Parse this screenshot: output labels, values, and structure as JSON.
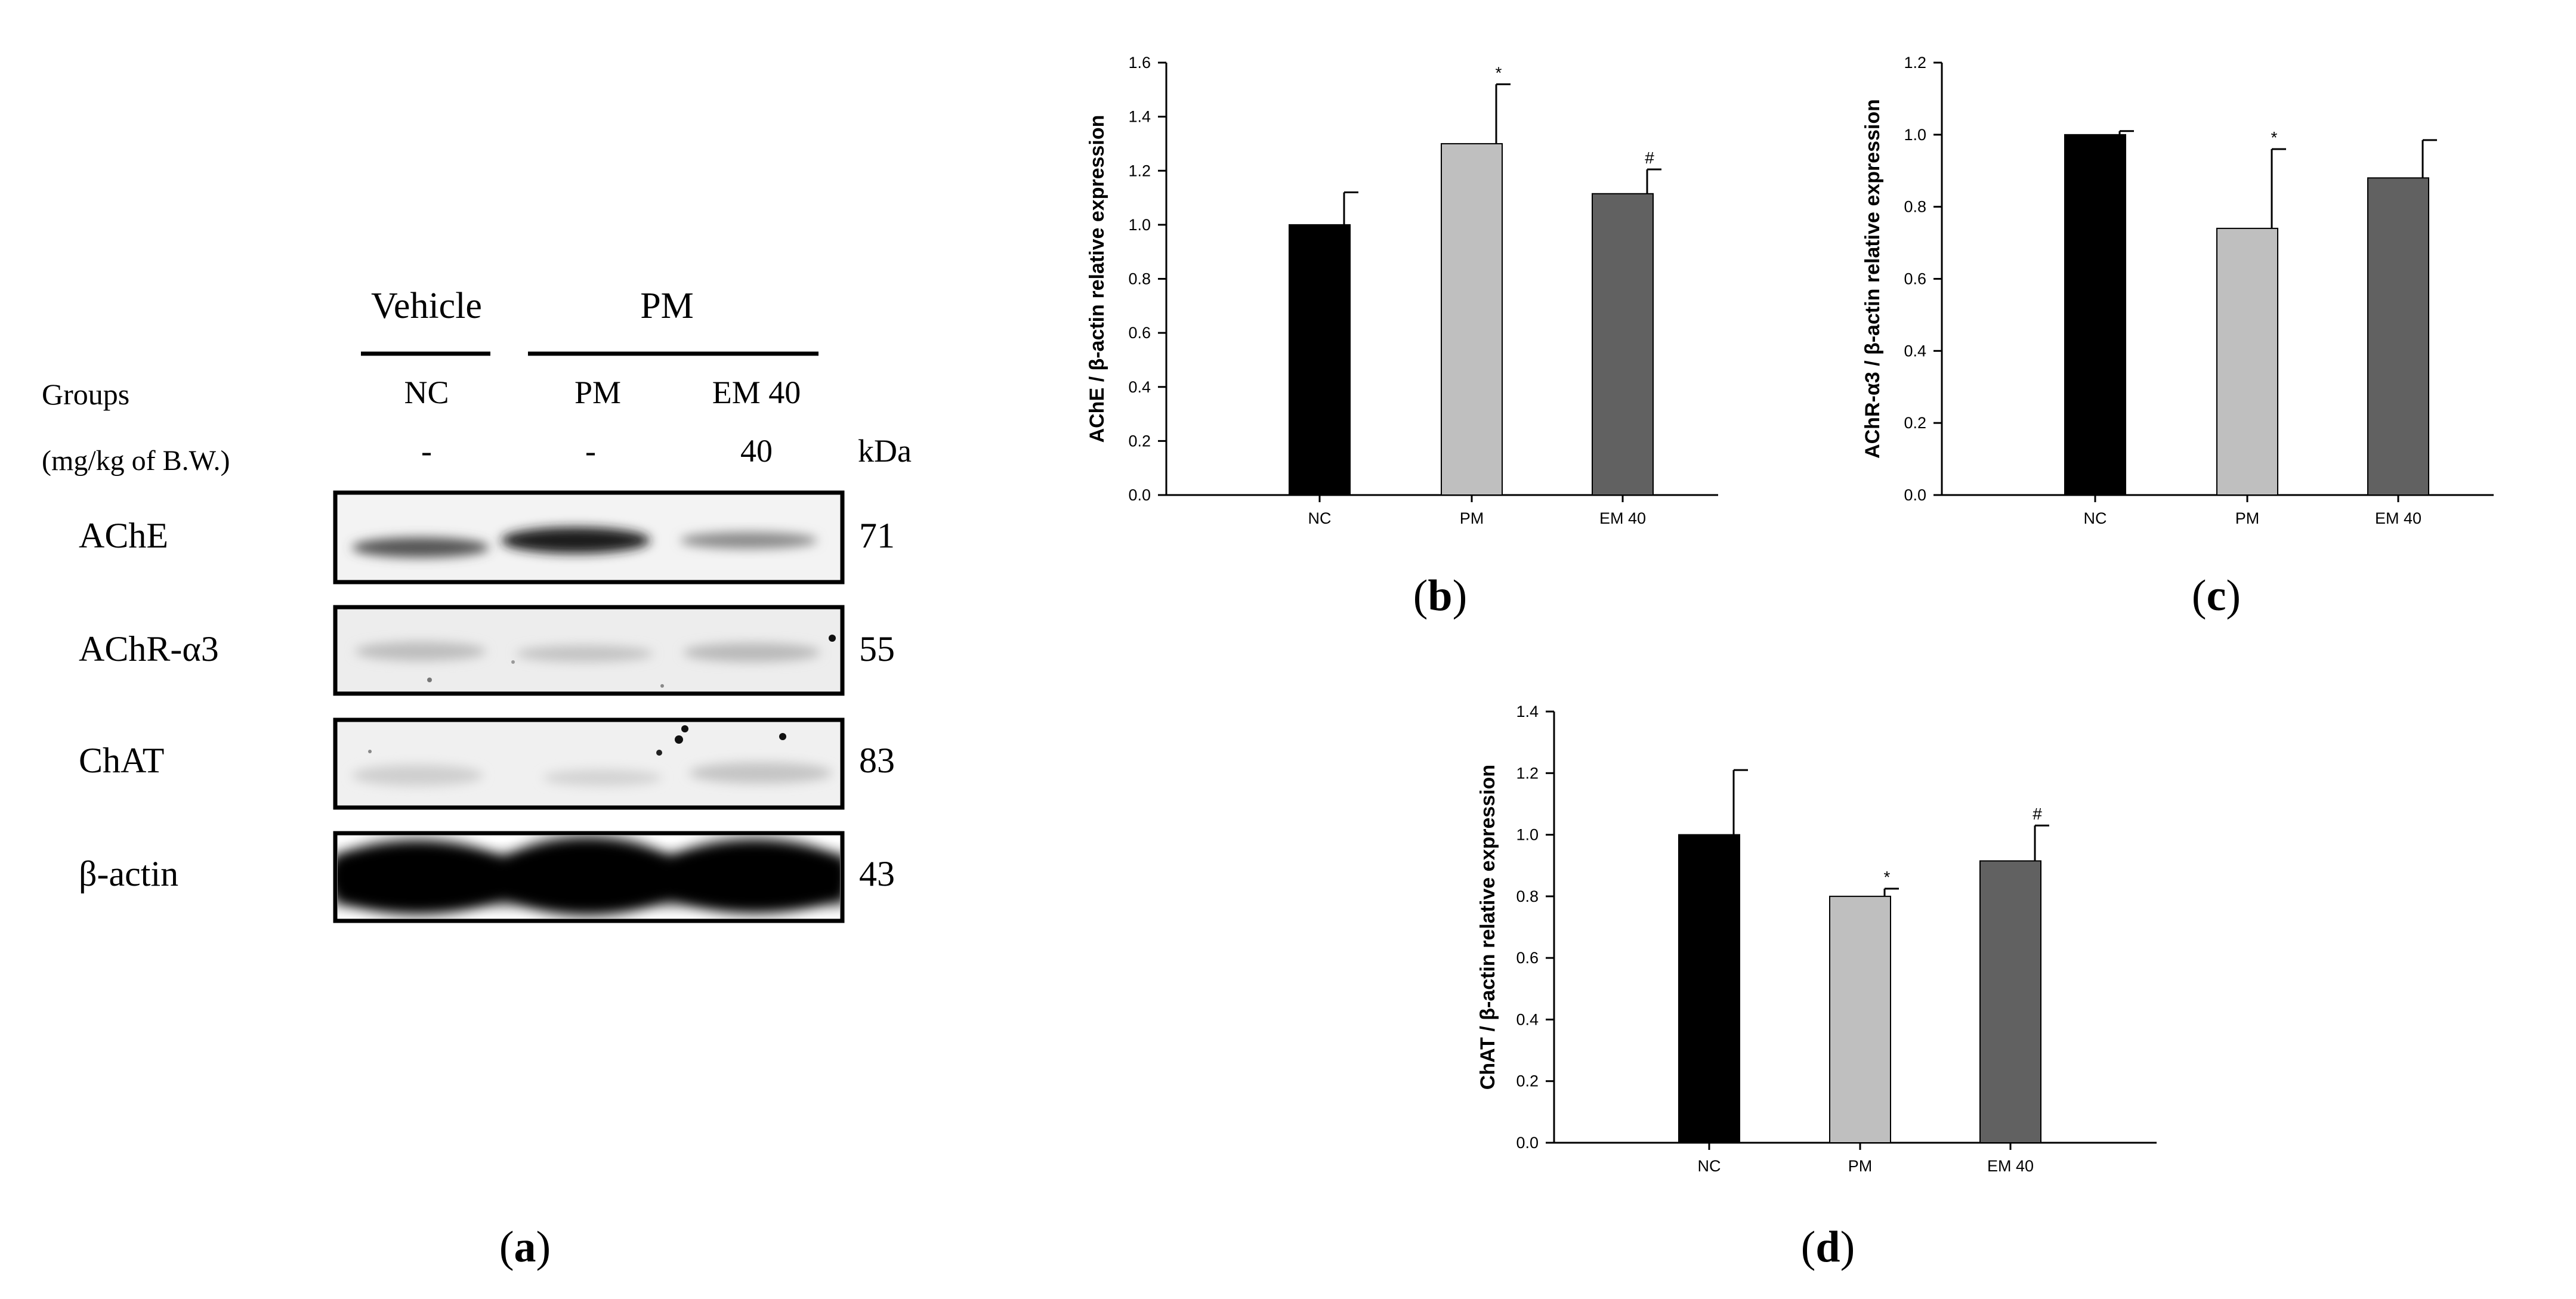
{
  "figure": {
    "panel_labels": [
      {
        "open": "(",
        "letter": "a",
        "close": ")"
      },
      {
        "open": "(",
        "letter": "b",
        "close": ")"
      },
      {
        "open": "(",
        "letter": "c",
        "close": ")"
      },
      {
        "open": "(",
        "letter": "d",
        "close": ")"
      }
    ]
  },
  "blot": {
    "header": {
      "vehicle": "Vehicle",
      "pm": "PM",
      "groups_label": "Groups",
      "dose_label": "(mg/kg of B.W.)",
      "kda_label": "kDa"
    },
    "groups": [
      "NC",
      "PM",
      "EM 40"
    ],
    "doses": [
      "-",
      "-",
      "40"
    ],
    "proteins": [
      {
        "name": "AChE",
        "kda": "71"
      },
      {
        "name": "AChR-α3",
        "kda": "55"
      },
      {
        "name": "ChAT",
        "kda": "83"
      },
      {
        "name": "β-actin",
        "kda": "43"
      }
    ]
  },
  "colors": {
    "NC": "#000000",
    "PM": "#bfbfbf",
    "EM 40": "#616161"
  },
  "chart_data": [
    {
      "type": "bar",
      "panel": "b",
      "categories": [
        "NC",
        "PM",
        "EM 40"
      ],
      "values": [
        1.0,
        1.3,
        1.115
      ],
      "error": [
        0.12,
        0.22,
        0.09
      ],
      "annotations": [
        "",
        "*",
        "#"
      ],
      "ylabel": "AChE / β-actin relative expression",
      "ylim": [
        0,
        1.6
      ],
      "yticks": [
        "0.0",
        "0.2",
        "0.4",
        "0.6",
        "0.8",
        "1.0",
        "1.2",
        "1.4",
        "1.6"
      ]
    },
    {
      "type": "bar",
      "panel": "c",
      "categories": [
        "NC",
        "PM",
        "EM 40"
      ],
      "values": [
        1.0,
        0.74,
        0.88
      ],
      "error": [
        0.01,
        0.22,
        0.105
      ],
      "annotations": [
        "",
        "*",
        ""
      ],
      "ylabel": "AChR-α3 / β-actin relative expression",
      "ylim": [
        0,
        1.2
      ],
      "yticks": [
        "0.0",
        "0.2",
        "0.4",
        "0.6",
        "0.8",
        "1.0",
        "1.2"
      ]
    },
    {
      "type": "bar",
      "panel": "d",
      "categories": [
        "NC",
        "PM",
        "EM 40"
      ],
      "values": [
        1.0,
        0.8,
        0.915
      ],
      "error": [
        0.21,
        0.025,
        0.115
      ],
      "annotations": [
        "",
        "*",
        "#"
      ],
      "ylabel": "ChAT / β-actin relative expression",
      "ylim": [
        0,
        1.4
      ],
      "yticks": [
        "0.0",
        "0.2",
        "0.4",
        "0.6",
        "0.8",
        "1.0",
        "1.2",
        "1.4"
      ]
    }
  ]
}
